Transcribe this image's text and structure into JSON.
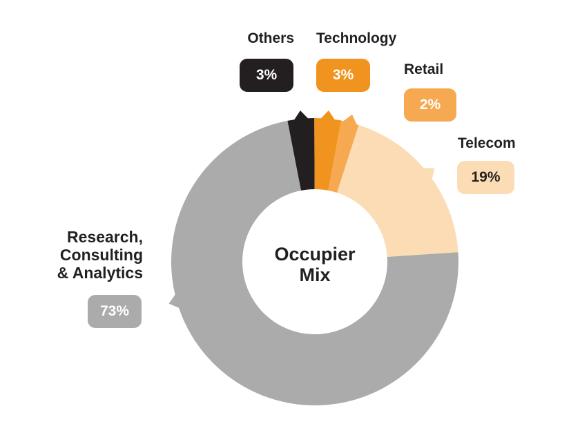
{
  "chart_data": {
    "type": "pie",
    "variant": "donut",
    "title": "Occupier Mix",
    "center_label": "Occupier Mix",
    "categories": [
      "Others",
      "Technology",
      "Retail",
      "Telecom",
      "Research, Consulting & Analytics"
    ],
    "values": [
      3,
      3,
      2,
      19,
      73
    ],
    "unit": "%",
    "colors": [
      "#231F20",
      "#F0941F",
      "#F6A950",
      "#FBDCB4",
      "#ABABAB"
    ],
    "start_angle_deg": -11,
    "pointer_angles_deg": [
      -5.5,
      5.2,
      14.2,
      52,
      254
    ],
    "legend_position": "callouts-around-chart"
  },
  "callouts": {
    "others": {
      "label": "Others",
      "value": "3%"
    },
    "technology": {
      "label": "Technology",
      "value": "3%"
    },
    "retail": {
      "label": "Retail",
      "value": "2%"
    },
    "telecom": {
      "label": "Telecom",
      "value": "19%"
    },
    "research": {
      "label_lines": [
        "Research,",
        "Consulting",
        "& Analytics"
      ],
      "value": "73%"
    }
  },
  "colors": {
    "background": "#FFFFFF",
    "text_dark": "#231F20",
    "badge_text_light": "#FFFFFF"
  }
}
